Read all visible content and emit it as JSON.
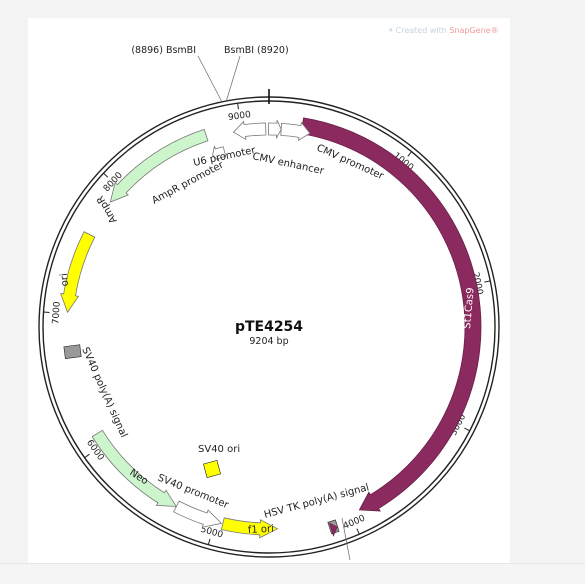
{
  "watermark": {
    "prefix": "Created with ",
    "brand": "SnapGene",
    "suffix": "®"
  },
  "plasmid": {
    "name": "pTE4254",
    "length_label": "9204 bp",
    "length_bp": 9204
  },
  "ticks": [
    {
      "pos": 1000,
      "label": "1000"
    },
    {
      "pos": 2000,
      "label": "2000"
    },
    {
      "pos": 3000,
      "label": "3000"
    },
    {
      "pos": 4000,
      "label": "4000"
    },
    {
      "pos": 5000,
      "label": "5000"
    },
    {
      "pos": 6000,
      "label": "6000"
    },
    {
      "pos": 7000,
      "label": "7000"
    },
    {
      "pos": 8000,
      "label": "8000"
    },
    {
      "pos": 9000,
      "label": "9000"
    }
  ],
  "sites": [
    {
      "name": "BsmBI",
      "pos": 8896,
      "label": "(8896)  BsmBI"
    },
    {
      "name": "BsmBI",
      "pos": 8920,
      "label": "BsmBI  (8920)"
    }
  ],
  "features": [
    {
      "id": "st1cas9",
      "label": "St1Cas9",
      "start": 240,
      "end": 3930,
      "strand": 1,
      "color": "#8b2a5e"
    },
    {
      "id": "cmv-promoter",
      "label": "CMV promoter",
      "start": 90,
      "end": 305,
      "strand": 1,
      "color": "#ffffff"
    },
    {
      "id": "cmv-enhancer",
      "label": "CMV enhancer",
      "start": 9200,
      "end": 90,
      "strand": 1,
      "color": "#ffffff"
    },
    {
      "id": "u6-promoter",
      "label": "U6 promoter",
      "start": 8940,
      "end": 9180,
      "strand": -1,
      "color": "#ffffff"
    },
    {
      "id": "ampr-promoter",
      "label": "AmpR promoter",
      "start": 8740,
      "end": 8840,
      "strand": -1,
      "color": "#ffffff"
    },
    {
      "id": "ampr",
      "label": "AmpR",
      "start": 7880,
      "end": 8740,
      "strand": -1,
      "color": "#ccf5cc"
    },
    {
      "id": "ori",
      "label": "ori",
      "start": 7010,
      "end": 7600,
      "strand": -1,
      "color": "#ffff00"
    },
    {
      "id": "sv40-polya",
      "label": "SV40 poly(A) signal",
      "start": 6660,
      "end": 6780,
      "strand": 0,
      "color": "#999999"
    },
    {
      "id": "neo",
      "label": "Neo",
      "start": 5300,
      "end": 6090,
      "strand": -1,
      "color": "#ccf5cc"
    },
    {
      "id": "sv40-promoter",
      "label": "SV40 promoter",
      "start": 4950,
      "end": 5300,
      "strand": -1,
      "color": "#ffffff"
    },
    {
      "id": "f1-ori",
      "label": "f1 ori",
      "start": 4540,
      "end": 4940,
      "strand": -1,
      "color": "#ffff00"
    },
    {
      "id": "hsv-tk-polya",
      "label": "HSV TK poly(A) signal",
      "start": 4110,
      "end": 4180,
      "strand": 0,
      "color": "#999999"
    },
    {
      "id": "sv40-ori",
      "label": "SV40 ori",
      "start": 0,
      "end": 0,
      "strand": 0,
      "color": "#ffff00"
    }
  ]
}
